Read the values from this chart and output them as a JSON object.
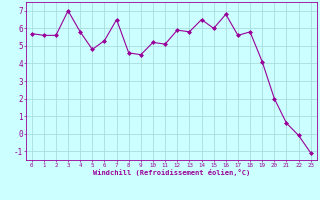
{
  "x": [
    0,
    1,
    2,
    3,
    4,
    5,
    6,
    7,
    8,
    9,
    10,
    11,
    12,
    13,
    14,
    15,
    16,
    17,
    18,
    19,
    20,
    21,
    22,
    23
  ],
  "y": [
    5.7,
    5.6,
    5.6,
    7.0,
    5.8,
    4.8,
    5.3,
    6.5,
    4.6,
    4.5,
    5.2,
    5.1,
    5.9,
    5.8,
    6.5,
    6.0,
    6.8,
    5.6,
    5.8,
    4.1,
    2.0,
    0.6,
    -0.1,
    -1.1
  ],
  "line_color": "#990099",
  "marker": "D",
  "marker_size": 2,
  "bg_color": "#ccffff",
  "grid_color": "#aadddd",
  "xlabel": "Windchill (Refroidissement éolien,°C)",
  "xlabel_color": "#990099",
  "tick_color": "#990099",
  "spine_color": "#990099",
  "ylim": [
    -1.5,
    7.5
  ],
  "xlim": [
    -0.5,
    23.5
  ],
  "yticks": [
    -1,
    0,
    1,
    2,
    3,
    4,
    5,
    6,
    7
  ],
  "xticks": [
    0,
    1,
    2,
    3,
    4,
    5,
    6,
    7,
    8,
    9,
    10,
    11,
    12,
    13,
    14,
    15,
    16,
    17,
    18,
    19,
    20,
    21,
    22,
    23
  ]
}
